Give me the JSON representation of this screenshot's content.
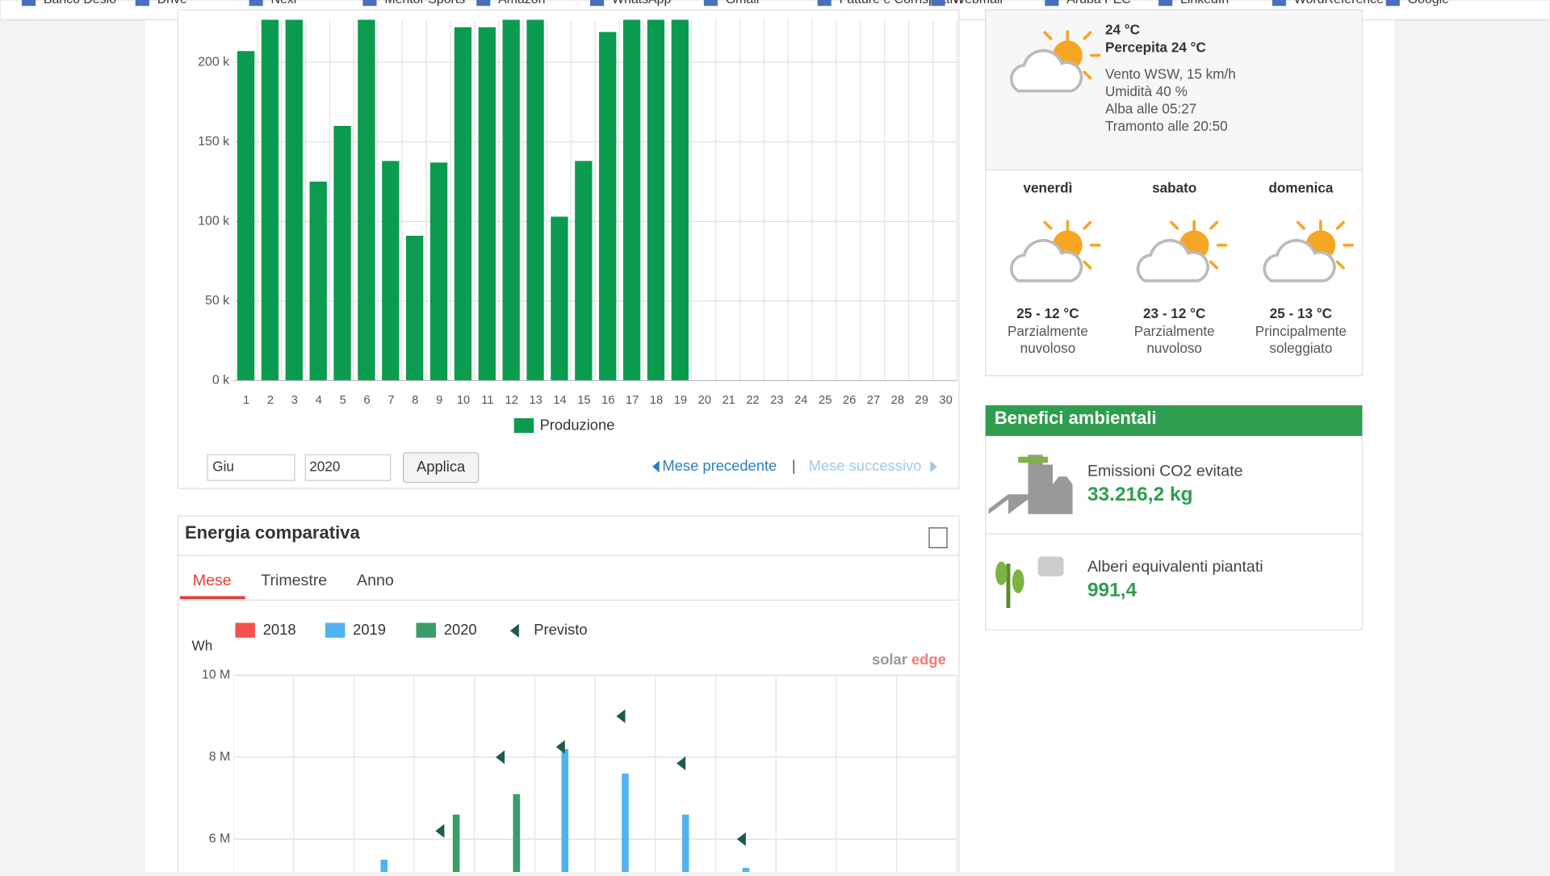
{
  "bookmarks": [
    "Banco Desio",
    "Drive",
    "Nexi",
    "Mentor Sports",
    "Amazon",
    "WhatsApp",
    "Gmail",
    "Fatture e Corrispettivi",
    "Webmail",
    "Aruba PEC",
    "LinkedIn",
    "WordReference",
    "Google"
  ],
  "chart_data": [
    {
      "type": "bar",
      "categories": [
        "1",
        "2",
        "3",
        "4",
        "5",
        "6",
        "7",
        "8",
        "9",
        "10",
        "11",
        "12",
        "13",
        "14",
        "15",
        "16",
        "17",
        "18",
        "19",
        "20",
        "21",
        "22",
        "23",
        "24",
        "25",
        "26",
        "27",
        "28",
        "29",
        "30"
      ],
      "series": [
        {
          "name": "Produzione",
          "color": "#0a9b4f",
          "values": [
            207,
            230,
            230,
            125,
            160,
            230,
            138,
            91,
            137,
            222,
            222,
            230,
            230,
            103,
            138,
            219,
            230,
            230,
            230,
            null,
            null,
            null,
            null,
            null,
            null,
            null,
            null,
            null,
            null,
            null
          ]
        }
      ],
      "ylim": [
        0,
        227
      ],
      "yticks": [
        {
          "value": 0,
          "label": "0 k"
        },
        {
          "value": 50,
          "label": "50 k"
        },
        {
          "value": 100,
          "label": "100 k"
        },
        {
          "value": 150,
          "label": "150 k"
        },
        {
          "value": 200,
          "label": "200 k"
        }
      ],
      "grid": true
    },
    {
      "type": "bar",
      "title": "Energia comparativa",
      "ylabel": "Wh",
      "categories": [
        null,
        null,
        null,
        null,
        null,
        null,
        null,
        null,
        null,
        null,
        null,
        null
      ],
      "series": [
        {
          "name": "2018",
          "color": "#f4524d",
          "values": [
            null,
            null,
            null,
            null,
            null,
            null,
            null,
            null,
            null,
            null,
            null,
            null
          ]
        },
        {
          "name": "2019",
          "color": "#4fb3f0",
          "values": [
            null,
            null,
            5.5,
            null,
            null,
            8.2,
            7.6,
            6.6,
            5.3,
            null,
            null,
            null
          ]
        },
        {
          "name": "2020",
          "color": "#3a9d6a",
          "values": [
            null,
            null,
            null,
            6.6,
            7.1,
            null,
            null,
            null,
            null,
            null,
            null,
            null
          ]
        },
        {
          "name": "Previsto",
          "color": "#1e5c4a",
          "style": "marker",
          "values": [
            null,
            null,
            null,
            6.2,
            8.0,
            8.25,
            9.0,
            7.85,
            6.0,
            null,
            null,
            null
          ]
        }
      ],
      "ylim": [
        5.2,
        10
      ],
      "yticks": [
        {
          "value": 6,
          "label": "6 M"
        },
        {
          "value": 8,
          "label": "8 M"
        },
        {
          "value": 10,
          "label": "10 M"
        }
      ],
      "grid": true
    }
  ],
  "controls": {
    "month": "Giu",
    "year": "2020",
    "apply": "Applica",
    "prev": "Mese precedente",
    "sep": "|",
    "next": "Mese successivo"
  },
  "tabs": [
    "Mese",
    "Trimestre",
    "Anno"
  ],
  "logo": [
    "solar",
    "edge"
  ],
  "weather": {
    "temp": "24 °C",
    "feels": "Percepita 24 °C",
    "details": [
      "Vento WSW, 15 km/h",
      "Umidità 40 %",
      "Alba alle 05:27",
      "Tramonto alle 20:50"
    ],
    "forecast": [
      {
        "day": "venerdì",
        "temp": "25 - 12 °C",
        "desc": [
          "Parzialmente",
          "nuvoloso"
        ]
      },
      {
        "day": "sabato",
        "temp": "23 - 12 °C",
        "desc": [
          "Parzialmente",
          "nuvoloso"
        ]
      },
      {
        "day": "domenica",
        "temp": "25 - 13 °C",
        "desc": [
          "Principalmente",
          "soleggiato"
        ]
      }
    ]
  },
  "benefits": {
    "title": "Benefici ambientali",
    "items": [
      {
        "label": "Emissioni CO2 evitate",
        "value": "33.216,2 kg"
      },
      {
        "label": "Alberi equivalenti piantati",
        "value": "991,4"
      }
    ]
  }
}
